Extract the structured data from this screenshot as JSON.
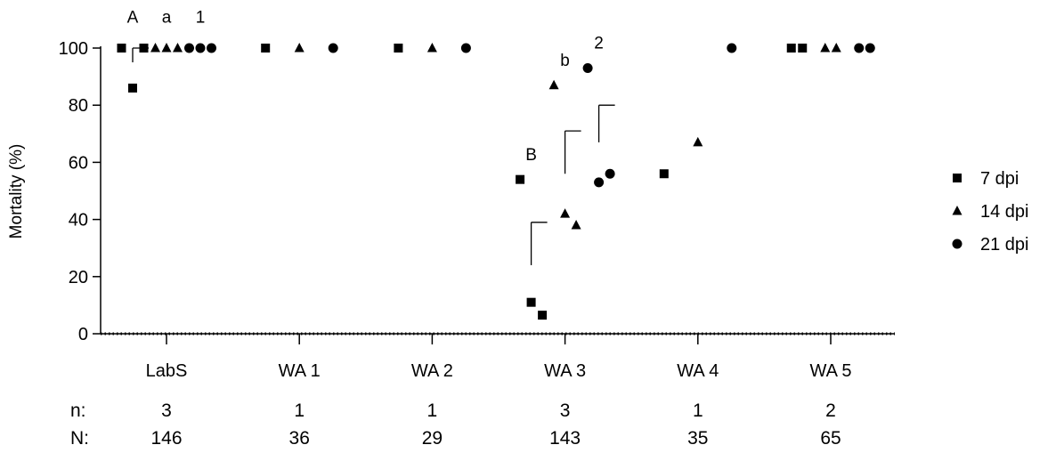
{
  "chart_data": {
    "type": "scatter",
    "ylabel": "Mortality (%)",
    "ylim": [
      0,
      100
    ],
    "yticks": [
      0,
      20,
      40,
      60,
      80,
      100
    ],
    "categories": [
      "LabS",
      "WA 1",
      "WA 2",
      "WA 3",
      "WA 4",
      "WA 5"
    ],
    "series": [
      {
        "name": "7 dpi",
        "marker": "square",
        "points": [
          {
            "category": "LabS",
            "values": [
              100,
              86,
              100
            ]
          },
          {
            "category": "WA 1",
            "values": [
              100
            ]
          },
          {
            "category": "WA 2",
            "values": [
              100
            ]
          },
          {
            "category": "WA 3",
            "values": [
              54,
              11,
              6.5
            ]
          },
          {
            "category": "WA 4",
            "values": [
              56
            ]
          },
          {
            "category": "WA 5",
            "values": [
              100,
              100
            ]
          }
        ]
      },
      {
        "name": "14 dpi",
        "marker": "triangle",
        "points": [
          {
            "category": "LabS",
            "values": [
              100,
              100,
              100
            ]
          },
          {
            "category": "WA 1",
            "values": [
              100
            ]
          },
          {
            "category": "WA 2",
            "values": [
              100
            ]
          },
          {
            "category": "WA 3",
            "values": [
              87,
              42,
              38
            ]
          },
          {
            "category": "WA 4",
            "values": [
              67
            ]
          },
          {
            "category": "WA 5",
            "values": [
              100,
              100
            ]
          }
        ]
      },
      {
        "name": "21 dpi",
        "marker": "circle",
        "points": [
          {
            "category": "LabS",
            "values": [
              100,
              100,
              100
            ]
          },
          {
            "category": "WA 1",
            "values": [
              100
            ]
          },
          {
            "category": "WA 2",
            "values": [
              100
            ]
          },
          {
            "category": "WA 3",
            "values": [
              93,
              53,
              56
            ]
          },
          {
            "category": "WA 4",
            "values": [
              100
            ]
          },
          {
            "category": "WA 5",
            "values": [
              100,
              100
            ]
          }
        ]
      }
    ],
    "error_bars": [
      {
        "category": "LabS",
        "series": "7 dpi",
        "mean": 95,
        "upper": 100
      },
      {
        "category": "WA 3",
        "series": "7 dpi",
        "mean": 24,
        "upper": 39
      },
      {
        "category": "WA 3",
        "series": "14 dpi",
        "mean": 56,
        "upper": 71
      },
      {
        "category": "WA 3",
        "series": "21 dpi",
        "mean": 67,
        "upper": 80
      }
    ],
    "annotations": [
      {
        "text": "A",
        "category": "LabS",
        "series": "7 dpi",
        "y": 111
      },
      {
        "text": "a",
        "category": "LabS",
        "series": "14 dpi",
        "y": 111
      },
      {
        "text": "1",
        "category": "LabS",
        "series": "21 dpi",
        "y": 111
      },
      {
        "text": "B",
        "category": "WA 3",
        "series": "7 dpi",
        "y": 63
      },
      {
        "text": "b",
        "category": "WA 3",
        "series": "14 dpi",
        "y": 96
      },
      {
        "text": "2",
        "category": "WA 3",
        "series": "21 dpi",
        "y": 102
      }
    ],
    "legend": {
      "placement": "right"
    },
    "footer": {
      "rows": [
        {
          "label": "n:",
          "values": [
            "3",
            "1",
            "1",
            "3",
            "1",
            "2"
          ]
        },
        {
          "label": "N:",
          "values": [
            "146",
            "36",
            "29",
            "143",
            "35",
            "65"
          ]
        }
      ]
    }
  }
}
